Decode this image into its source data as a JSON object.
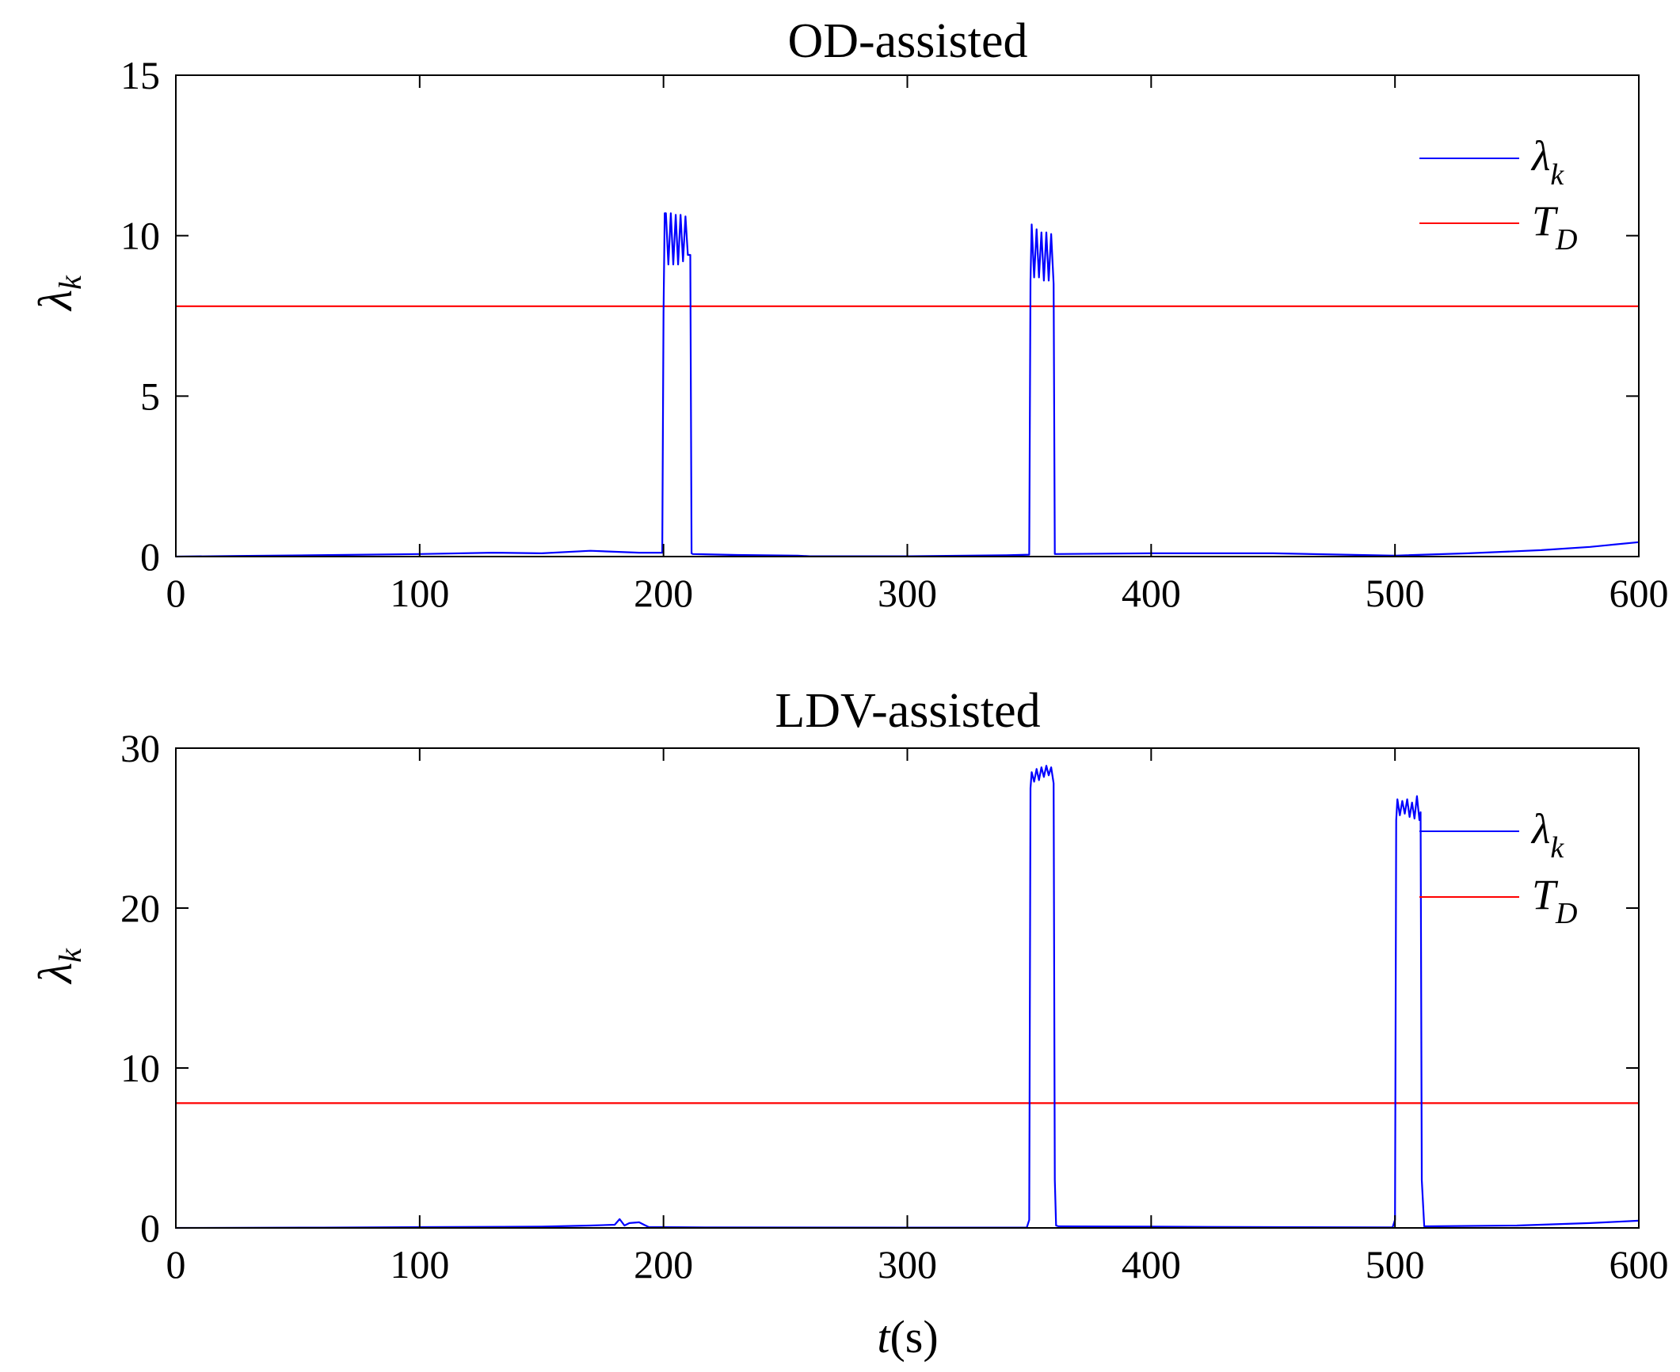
{
  "chart_data": [
    {
      "type": "line",
      "title": "OD-assisted",
      "xlabel": "",
      "ylabel": "λk",
      "xlim": [
        0,
        600
      ],
      "ylim": [
        0,
        15
      ],
      "xticks": [
        "0",
        "100",
        "200",
        "300",
        "400",
        "500",
        "600"
      ],
      "yticks": [
        "0",
        "5",
        "10",
        "15"
      ],
      "legend_position": "top-right",
      "legend": [
        {
          "label": "λ",
          "sub": "k",
          "color": "#0000ff"
        },
        {
          "label": "T",
          "sub": "D",
          "color": "#ff0000"
        }
      ],
      "series": [
        {
          "name": "λk",
          "color": "#0000ff",
          "x": [
            0,
            25,
            55,
            100,
            130,
            150,
            170,
            190,
            199.5,
            200,
            200.5,
            201,
            202,
            203,
            204,
            205,
            206,
            207,
            208,
            209,
            210,
            211,
            211.5,
            212,
            230,
            255,
            260,
            300,
            340,
            350,
            350.5,
            351,
            352,
            353,
            354,
            355,
            356,
            357,
            358,
            359,
            360,
            360.5,
            361,
            400,
            450,
            500,
            530,
            560,
            580,
            600
          ],
          "y": [
            0.0,
            0.02,
            0.04,
            0.08,
            0.12,
            0.1,
            0.18,
            0.12,
            0.12,
            7.6,
            10.7,
            10.7,
            9.1,
            10.7,
            9.1,
            10.65,
            9.1,
            10.65,
            9.2,
            10.6,
            9.4,
            9.4,
            0.1,
            0.08,
            0.05,
            0.03,
            0.01,
            0.01,
            0.04,
            0.06,
            8.6,
            10.35,
            8.7,
            10.2,
            8.7,
            10.1,
            8.6,
            10.1,
            8.6,
            10.05,
            8.5,
            0.08,
            0.08,
            0.1,
            0.1,
            0.03,
            0.1,
            0.2,
            0.3,
            0.45
          ]
        },
        {
          "name": "TD",
          "color": "#ff0000",
          "x": [
            0,
            600
          ],
          "y": [
            7.8,
            7.8
          ]
        }
      ]
    },
    {
      "type": "line",
      "title": "LDV-assisted",
      "xlabel": "t(s)",
      "ylabel": "λk",
      "xlim": [
        0,
        600
      ],
      "ylim": [
        0,
        30
      ],
      "xticks": [
        "0",
        "100",
        "200",
        "300",
        "400",
        "500",
        "600"
      ],
      "yticks": [
        "0",
        "10",
        "20",
        "30"
      ],
      "legend_position": "top-right",
      "legend": [
        {
          "label": "λ",
          "sub": "k",
          "color": "#0000ff"
        },
        {
          "label": "T",
          "sub": "D",
          "color": "#ff0000"
        }
      ],
      "series": [
        {
          "name": "λk",
          "color": "#0000ff",
          "x": [
            0,
            60,
            100,
            150,
            170,
            180,
            182,
            184,
            186,
            190,
            192,
            194,
            200,
            220,
            300,
            349,
            350,
            350.5,
            351,
            352,
            353,
            354,
            355,
            356,
            357,
            358,
            359,
            360,
            360.5,
            361,
            362,
            400,
            450,
            499,
            500,
            500.5,
            501,
            502,
            503,
            504,
            505,
            506,
            507,
            508,
            509,
            510,
            510.5,
            511,
            512,
            550,
            580,
            600
          ],
          "y": [
            0.0,
            0.02,
            0.05,
            0.08,
            0.15,
            0.2,
            0.55,
            0.15,
            0.3,
            0.35,
            0.2,
            0.05,
            0.05,
            0.03,
            0.02,
            0.02,
            0.5,
            27.5,
            28.5,
            27.9,
            28.7,
            28.0,
            28.8,
            28.2,
            28.9,
            28.3,
            28.8,
            27.8,
            3.0,
            0.15,
            0.1,
            0.08,
            0.05,
            0.03,
            0.5,
            25.5,
            26.8,
            25.8,
            26.7,
            25.9,
            26.8,
            25.7,
            26.6,
            25.6,
            27.0,
            25.5,
            26.0,
            3.0,
            0.1,
            0.15,
            0.3,
            0.45
          ]
        },
        {
          "name": "TD",
          "color": "#ff0000",
          "x": [
            0,
            600
          ],
          "y": [
            7.8,
            7.8
          ]
        }
      ]
    }
  ]
}
